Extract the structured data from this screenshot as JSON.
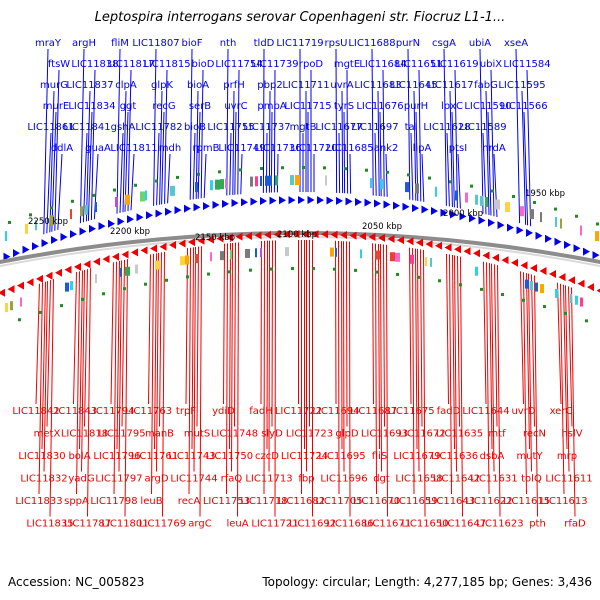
{
  "title": "Leptospira interrogans serovar Copenhageni str. Fiocruz L1-1...",
  "footer": {
    "accession": "Accession: NC_005823",
    "summary": "Topology: circular; Length: 4,277,185 bp; Genes: 3,436"
  },
  "scale_labels": [
    "2250 kbp",
    "2200 kbp",
    "2150 kbp",
    "2100 kbp",
    "2050 kbp",
    "2000 kbp",
    "1950 kbp"
  ],
  "colors": {
    "forward_strand": "#0000ee",
    "reverse_strand": "#ee0000",
    "backbone": "#8c8c8c",
    "tick": "#228b22"
  },
  "forward_genes": [
    "mraY",
    "ftsW",
    "murG",
    "murE",
    "LIC11861",
    "ddlA",
    "argH",
    "LIC11838",
    "LIC11837",
    "LIC11834",
    "LIC11841",
    "guaA",
    "fliM",
    "LIC11817",
    "clpA",
    "ggt",
    "gshA",
    "LIC11811",
    "LIC11807",
    "LIC11815",
    "glpK",
    "recG",
    "LIC11782",
    "mdh",
    "bioF",
    "bioD",
    "bioA",
    "serB",
    "bioB",
    "rpmB",
    "nth",
    "LIC11754",
    "prfH",
    "uvrC",
    "LIC11755",
    "LIC11749",
    "tldD",
    "LIC11739",
    "pbp2",
    "pmbA",
    "LIC11737",
    "LIC11736",
    "LIC11719",
    "rpoD",
    "LIC11711",
    "LIC11715",
    "mgtB",
    "LIC11720",
    "rpsU",
    "mgtE",
    "uvrA",
    "tyrS",
    "LIC11677",
    "LIC11685",
    "LIC11688",
    "LIC11684",
    "LIC11683",
    "LIC11676",
    "LIC11697",
    "ank2",
    "purN",
    "LIC11651",
    "LIC11645",
    "purH",
    "tal",
    "lipA",
    "csgA",
    "LIC11619",
    "LIC11617",
    "lpxC",
    "LIC11628",
    "ptsI",
    "ubiA",
    "ubiX",
    "fabG",
    "LIC11590",
    "LIC11589",
    "nrdA",
    "xseA",
    "LIC11584",
    "LIC11595",
    "LIC11566"
  ],
  "reverse_genes": [
    "LIC11842",
    "metX",
    "LIC11830",
    "LIC11832",
    "LIC11833",
    "LIC11835",
    "LIC11843",
    "LIC11818",
    "bolA",
    "yadG",
    "sppA",
    "LIC11787",
    "LIC11794",
    "LIC11795",
    "LIC11796",
    "LIC11797",
    "LIC11798",
    "LIC11801",
    "LIC11763",
    "manB",
    "LIC11761",
    "argD",
    "leuB",
    "LIC11769",
    "trpF",
    "mutS",
    "LIC11743",
    "LIC11744",
    "recA",
    "argC",
    "ydiD",
    "LIC11748",
    "LIC11750",
    "rfaQ",
    "LIC11753",
    "leuA",
    "fadH",
    "slyD",
    "czcD",
    "LIC11713",
    "LIC11718",
    "LIC11721",
    "LIC11722",
    "LIC11723",
    "LIC11724",
    "fbp",
    "LIC11682",
    "LIC11692",
    "LIC11694",
    "glpD",
    "LIC11695",
    "LIC11696",
    "LIC11705",
    "LIC11686",
    "LIC11687",
    "LIC11693",
    "fliS",
    "dgt",
    "LIC11670",
    "LIC11671",
    "LIC11675",
    "LIC11672",
    "LIC11679",
    "LIC11658",
    "LIC11659",
    "LIC11650",
    "fadD",
    "LIC11635",
    "LIC11636",
    "LIC11642",
    "LIC11643",
    "LIC11647",
    "LIC11644",
    "mtf",
    "dsbA",
    "LIC11631",
    "LIC11622",
    "LIC11623",
    "uvrD",
    "recN",
    "mutY",
    "tolQ",
    "LIC11615",
    "pth",
    "xerC",
    "hslV",
    "mrp",
    "LIC11611",
    "LIC11613",
    "rfaD"
  ]
}
